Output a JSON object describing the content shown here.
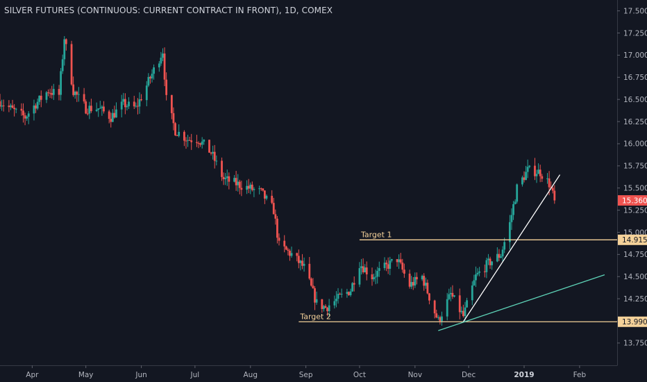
{
  "header": {
    "title": "SILVER FUTURES (CONTINUOUS: CURRENT CONTRACT IN FRONT), 1D, COMEX"
  },
  "colors": {
    "background": "#131722",
    "bull": "#26a69a",
    "bear": "#ef5350",
    "level_line": "#f5d29a",
    "trend_white": "#ffffff",
    "trend_teal": "#5ed4b8",
    "axis_text": "#b2b5be",
    "last_price_tag": "#ef5350"
  },
  "chart_data": {
    "type": "candlestick",
    "title": "SILVER FUTURES (CONTINUOUS: CURRENT CONTRACT IN FRONT), 1D, COMEX",
    "x_range": [
      "2018-03-14",
      "2019-02-22"
    ],
    "ylim": [
      13.6,
      17.56
    ],
    "y_ticks": [
      "13.750",
      "14.000",
      "14.250",
      "14.500",
      "14.750",
      "15.000",
      "15.250",
      "15.500",
      "15.750",
      "16.000",
      "16.250",
      "16.500",
      "16.750",
      "17.000",
      "17.250",
      "17.500"
    ],
    "x_ticks": [
      {
        "label": "Apr",
        "date": "2018-04-01",
        "bold": false
      },
      {
        "label": "May",
        "date": "2018-05-01",
        "bold": false
      },
      {
        "label": "Jun",
        "date": "2018-06-01",
        "bold": false
      },
      {
        "label": "Jul",
        "date": "2018-07-01",
        "bold": false
      },
      {
        "label": "Aug",
        "date": "2018-08-01",
        "bold": false
      },
      {
        "label": "Sep",
        "date": "2018-09-01",
        "bold": false
      },
      {
        "label": "Oct",
        "date": "2018-10-01",
        "bold": false
      },
      {
        "label": "Nov",
        "date": "2018-11-01",
        "bold": false
      },
      {
        "label": "Dec",
        "date": "2018-12-01",
        "bold": false
      },
      {
        "label": "2019",
        "date": "2019-01-01",
        "bold": true
      },
      {
        "label": "Feb",
        "date": "2019-02-01",
        "bold": false
      }
    ],
    "anchors": [
      [
        "2018-03-14",
        16.48
      ],
      [
        "2018-03-21",
        16.38
      ],
      [
        "2018-03-28",
        16.3
      ],
      [
        "2018-04-03",
        16.45
      ],
      [
        "2018-04-10",
        16.6
      ],
      [
        "2018-04-16",
        16.55
      ],
      [
        "2018-04-19",
        17.2
      ],
      [
        "2018-04-24",
        16.6
      ],
      [
        "2018-05-01",
        16.4
      ],
      [
        "2018-05-08",
        16.4
      ],
      [
        "2018-05-15",
        16.3
      ],
      [
        "2018-05-22",
        16.45
      ],
      [
        "2018-05-29",
        16.4
      ],
      [
        "2018-06-05",
        16.7
      ],
      [
        "2018-06-13",
        17.05
      ],
      [
        "2018-06-15",
        16.5
      ],
      [
        "2018-06-20",
        16.15
      ],
      [
        "2018-06-27",
        16.05
      ],
      [
        "2018-07-03",
        16.05
      ],
      [
        "2018-07-10",
        15.9
      ],
      [
        "2018-07-17",
        15.6
      ],
      [
        "2018-07-24",
        15.55
      ],
      [
        "2018-07-31",
        15.5
      ],
      [
        "2018-08-07",
        15.45
      ],
      [
        "2018-08-14",
        15.25
      ],
      [
        "2018-08-17",
        14.85
      ],
      [
        "2018-08-24",
        14.75
      ],
      [
        "2018-08-31",
        14.6
      ],
      [
        "2018-09-07",
        14.2
      ],
      [
        "2018-09-12",
        14.15
      ],
      [
        "2018-09-19",
        14.25
      ],
      [
        "2018-09-26",
        14.35
      ],
      [
        "2018-10-01",
        14.65
      ],
      [
        "2018-10-08",
        14.5
      ],
      [
        "2018-10-15",
        14.6
      ],
      [
        "2018-10-22",
        14.7
      ],
      [
        "2018-10-29",
        14.4
      ],
      [
        "2018-11-05",
        14.5
      ],
      [
        "2018-11-12",
        14.1
      ],
      [
        "2018-11-14",
        14.0
      ],
      [
        "2018-11-21",
        14.3
      ],
      [
        "2018-11-28",
        14.05
      ],
      [
        "2018-12-05",
        14.5
      ],
      [
        "2018-12-12",
        14.65
      ],
      [
        "2018-12-19",
        14.75
      ],
      [
        "2018-12-24",
        15.1
      ],
      [
        "2018-12-28",
        15.5
      ],
      [
        "2019-01-03",
        15.7
      ],
      [
        "2019-01-10",
        15.68
      ],
      [
        "2019-01-15",
        15.55
      ],
      [
        "2019-01-18",
        15.36
      ]
    ],
    "horizontal_levels": [
      {
        "value": 14.915,
        "label": "14.915",
        "annotation": "Target 1",
        "from": "2018-10-01"
      },
      {
        "value": 13.99,
        "label": "13.990",
        "annotation": "Target 2",
        "from": "2018-08-28"
      }
    ],
    "trend_lines": [
      {
        "color": "white",
        "from": [
          "2018-11-28",
          13.99
        ],
        "to": [
          "2019-01-21",
          15.65
        ]
      },
      {
        "color": "teal",
        "from": [
          "2018-11-14",
          13.89
        ],
        "to": [
          "2019-02-15",
          14.52
        ]
      }
    ],
    "last_price": {
      "value": 15.36,
      "label": "15.360"
    }
  }
}
